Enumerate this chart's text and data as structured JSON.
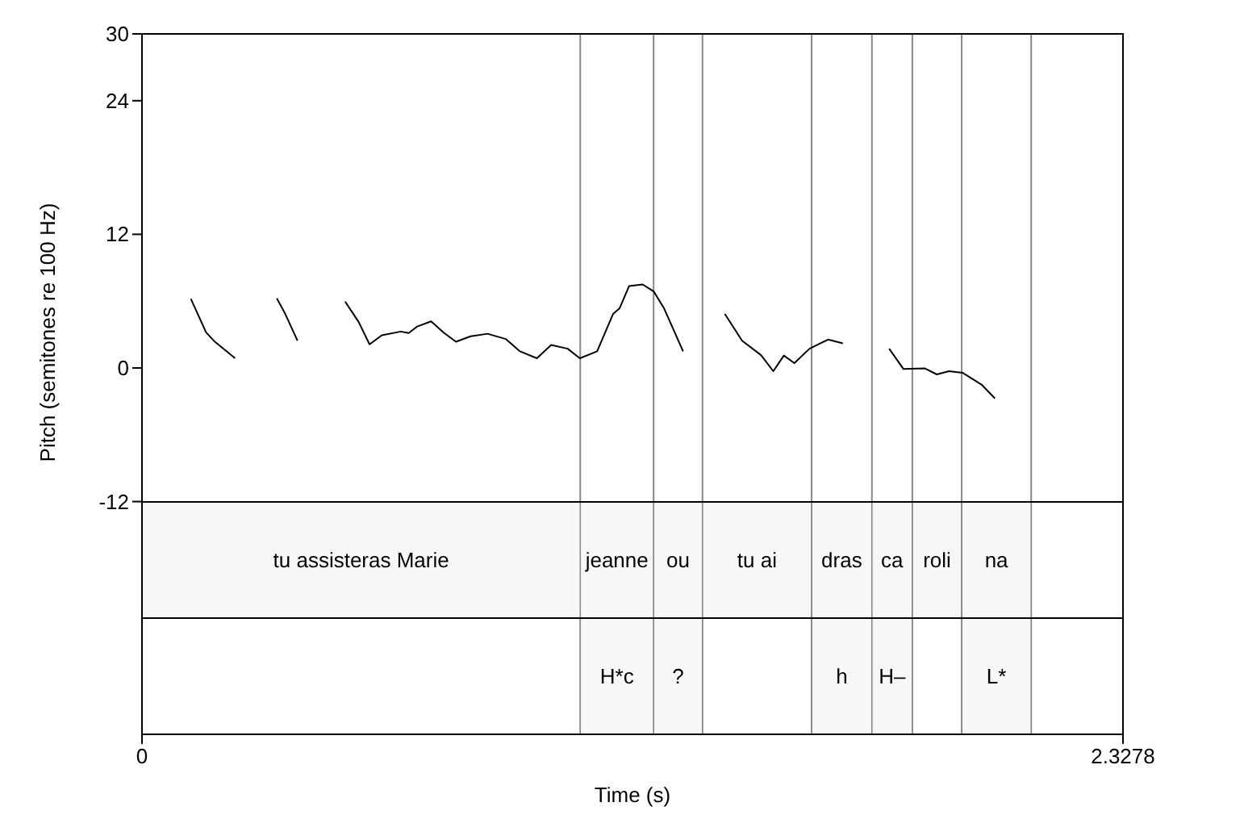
{
  "chart_data": {
    "type": "line",
    "xlabel": "Time (s)",
    "ylabel": "Pitch (semitones re 100 Hz)",
    "xlim": [
      0,
      2.3278
    ],
    "xticks": [
      0,
      2.3278
    ],
    "ylim": [
      -32.9,
      30
    ],
    "yticks": [
      -12,
      0,
      12,
      24,
      30
    ],
    "grid": false,
    "marker": "none",
    "line_style": "solid",
    "series": [
      {
        "color": "#000000",
        "x": [
          0.116,
          0.152,
          0.173,
          0.221,
          0.27,
          0.32,
          0.34,
          0.369,
          0.42,
          0.482,
          0.514,
          0.54,
          0.569,
          0.614,
          0.633,
          0.652,
          0.686,
          0.716,
          0.745,
          0.78,
          0.82,
          0.863,
          0.897,
          0.937,
          0.971,
          1.01,
          1.039,
          1.08,
          1.118,
          1.133,
          1.156,
          1.188,
          1.214,
          1.239,
          1.284,
          1.33,
          1.383,
          1.424,
          1.469,
          1.498,
          1.523,
          1.548,
          1.584,
          1.628,
          1.663,
          1.72,
          1.773,
          1.807,
          1.858,
          1.886,
          1.915,
          1.947,
          1.992,
          2.024
        ],
        "values": [
          6.2,
          3.2,
          2.35,
          0.87,
          null,
          6.25,
          4.85,
          2.45,
          null,
          5.96,
          4.14,
          2.12,
          2.93,
          3.27,
          3.13,
          3.7,
          4.18,
          3.17,
          2.35,
          2.84,
          3.07,
          2.6,
          1.49,
          0.87,
          2.06,
          1.73,
          0.87,
          1.49,
          4.86,
          5.34,
          7.36,
          7.5,
          6.88,
          5.34,
          1.49,
          null,
          4.86,
          2.45,
          1.15,
          -0.29,
          1.11,
          0.43,
          1.73,
          2.55,
          2.21,
          null,
          1.73,
          -0.1,
          -0.04,
          -0.58,
          -0.29,
          -0.43,
          -1.49,
          -2.74
        ]
      }
    ],
    "ref_lines": [
      {
        "axis": "x",
        "value": 1.04,
        "color": "#888888"
      },
      {
        "axis": "x",
        "value": 1.214,
        "color": "#888888"
      },
      {
        "axis": "x",
        "value": 1.33,
        "color": "#888888"
      },
      {
        "axis": "x",
        "value": 1.589,
        "color": "#888888"
      },
      {
        "axis": "x",
        "value": 1.732,
        "color": "#888888"
      },
      {
        "axis": "x",
        "value": 1.828,
        "color": "#888888"
      },
      {
        "axis": "x",
        "value": 1.945,
        "color": "#888888"
      },
      {
        "axis": "x",
        "value": 2.11,
        "color": "#888888"
      }
    ],
    "bands": [
      {
        "axis": "x",
        "from": 0,
        "to": 1.04,
        "label": "tu assisteras Marie",
        "color": "#f7f7f7"
      },
      {
        "axis": "x",
        "from": 1.04,
        "to": 1.214,
        "label": "jeanne",
        "color": "#f7f7f7"
      },
      {
        "axis": "x",
        "from": 1.214,
        "to": 1.33,
        "label": "ou",
        "color": "#f7f7f7"
      },
      {
        "axis": "x",
        "from": 1.33,
        "to": 1.589,
        "label": "tu ai",
        "color": "#f7f7f7"
      },
      {
        "axis": "x",
        "from": 1.589,
        "to": 1.732,
        "label": "dras",
        "color": "#f7f7f7"
      },
      {
        "axis": "x",
        "from": 1.732,
        "to": 1.828,
        "label": "ca",
        "color": "#f7f7f7"
      },
      {
        "axis": "x",
        "from": 1.828,
        "to": 1.945,
        "label": "roli",
        "color": "#f7f7f7"
      },
      {
        "axis": "x",
        "from": 1.945,
        "to": 2.11,
        "label": "na",
        "color": "#f7f7f7"
      },
      {
        "axis": "x",
        "from": 1.04,
        "to": 1.214,
        "label": "H*c",
        "color": "#f7f7f7"
      },
      {
        "axis": "x",
        "from": 1.214,
        "to": 1.33,
        "label": "?",
        "color": "#f7f7f7"
      },
      {
        "axis": "x",
        "from": 1.589,
        "to": 1.732,
        "label": "h",
        "color": "#f7f7f7"
      },
      {
        "axis": "x",
        "from": 1.732,
        "to": 1.828,
        "label": "H–",
        "color": "#f7f7f7"
      },
      {
        "axis": "x",
        "from": 1.945,
        "to": 2.11,
        "label": "L*",
        "color": "#f7f7f7"
      }
    ]
  }
}
